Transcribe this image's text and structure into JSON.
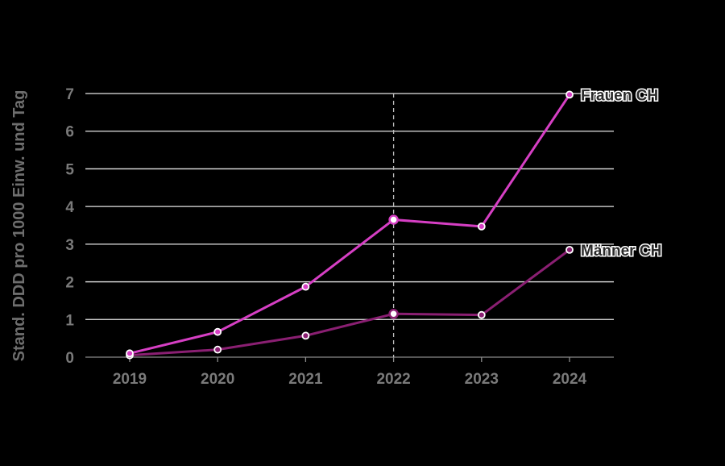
{
  "chart_data": {
    "type": "line",
    "title": "",
    "xlabel": "",
    "ylabel": "Stand. DDD pro 1000 Einw. und Tag",
    "categories": [
      "2019",
      "2020",
      "2021",
      "2022",
      "2023",
      "2024"
    ],
    "ylim": [
      0,
      7
    ],
    "yticks": [
      0,
      1,
      2,
      3,
      4,
      5,
      6,
      7
    ],
    "grid": true,
    "highlight_category": "2022",
    "series": [
      {
        "name": "Frauen CH",
        "color": "#d63fc4",
        "values": [
          0.1,
          0.67,
          1.87,
          3.65,
          3.47,
          6.97
        ]
      },
      {
        "name": "Männer CH",
        "color": "#8a1f72",
        "values": [
          0.05,
          0.2,
          0.57,
          1.15,
          1.12,
          2.85
        ]
      }
    ]
  }
}
